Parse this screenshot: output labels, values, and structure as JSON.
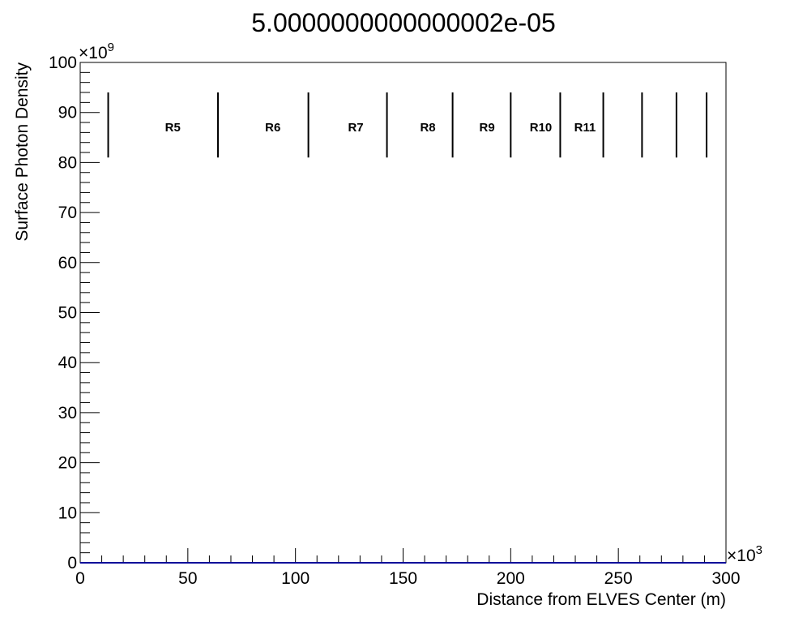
{
  "chart_data": {
    "type": "line",
    "title": "5.0000000000000002e-05",
    "xlabel": "Distance from ELVES Center (m)",
    "ylabel": "Surface Photon Density",
    "x_exponent_label": "×10",
    "x_exponent": "3",
    "y_exponent_label": "×10",
    "y_exponent": "9",
    "xlim": [
      0,
      300
    ],
    "ylim": [
      0,
      100
    ],
    "x_ticks": [
      0,
      50,
      100,
      150,
      200,
      250,
      300
    ],
    "y_ticks": [
      0,
      10,
      20,
      30,
      40,
      50,
      60,
      70,
      80,
      90,
      100
    ],
    "x_minor_step": 10,
    "y_minor_step": 2,
    "grid": false,
    "legend": "none",
    "series": [
      {
        "x": [
          0,
          300
        ],
        "y": [
          0,
          0
        ]
      }
    ],
    "region_boundaries": [
      13,
      64,
      106,
      142.5,
      173,
      200,
      223,
      243,
      261,
      277,
      291
    ],
    "region_line_yrange": [
      81,
      94
    ],
    "region_label_y": 87,
    "region_labels": [
      {
        "label": "R5",
        "x": 43
      },
      {
        "label": "R6",
        "x": 89.5
      },
      {
        "label": "R7",
        "x": 128
      },
      {
        "label": "R8",
        "x": 161.5
      },
      {
        "label": "R9",
        "x": 189
      },
      {
        "label": "R10",
        "x": 214
      },
      {
        "label": "R11",
        "x": 234.5
      }
    ]
  }
}
